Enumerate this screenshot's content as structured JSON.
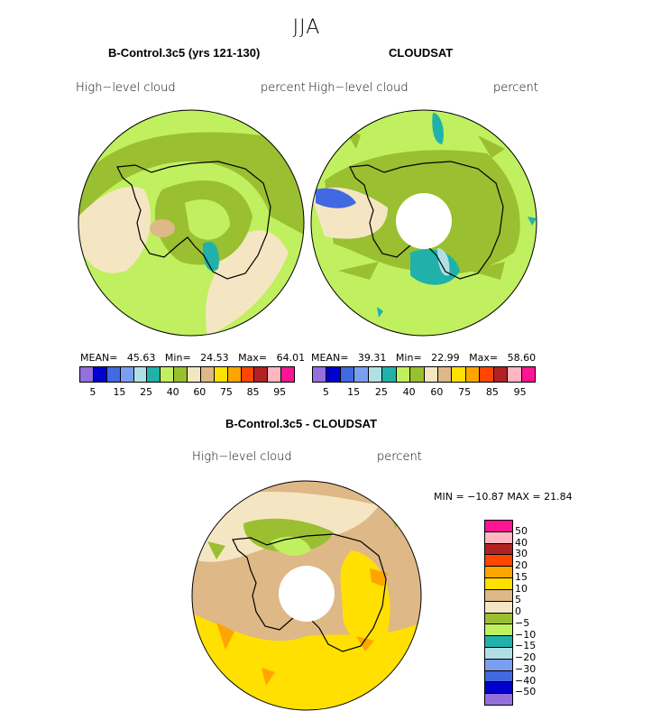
{
  "title": "JJA",
  "panels": [
    {
      "title": "B-Control.3c5 (yrs 121-130)",
      "left_label": "High−level cloud",
      "right_label": "percent",
      "stats": {
        "mean_label": "MEAN=",
        "mean": "45.63",
        "min_label": "Min=",
        "min": "24.53",
        "max_label": "Max=",
        "max": "64.01"
      }
    },
    {
      "title": "CLOUDSAT",
      "left_label": "High−level cloud",
      "right_label": "percent",
      "stats": {
        "mean_label": "MEAN=",
        "mean": "39.31",
        "min_label": "Min=",
        "min": "22.99",
        "max_label": "Max=",
        "max": "58.60"
      }
    },
    {
      "title": "B-Control.3c5 - CLOUDSAT",
      "left_label": "High−level cloud",
      "right_label": "percent",
      "stats_text": "MIN = −10.87 MAX =   21.84"
    }
  ],
  "colorbar": {
    "colors": [
      "#9370DB",
      "#0000CD",
      "#4169E1",
      "#7B9FF0",
      "#B0E0E6",
      "#20B2AA",
      "#C0F060",
      "#9ABF30",
      "#F5E6C3",
      "#DEB887",
      "#FFE000",
      "#FFA500",
      "#FF4500",
      "#B22222",
      "#FFB6C1",
      "#FF1493"
    ],
    "labels": [
      "5",
      "15",
      "25",
      "40",
      "60",
      "75",
      "85",
      "95"
    ]
  },
  "diff_colorbar": {
    "labels_top_down": [
      "50",
      "40",
      "30",
      "20",
      "15",
      "10",
      "5",
      "0",
      "−5",
      "−10",
      "−15",
      "−20",
      "−30",
      "−40",
      "−50"
    ]
  }
}
